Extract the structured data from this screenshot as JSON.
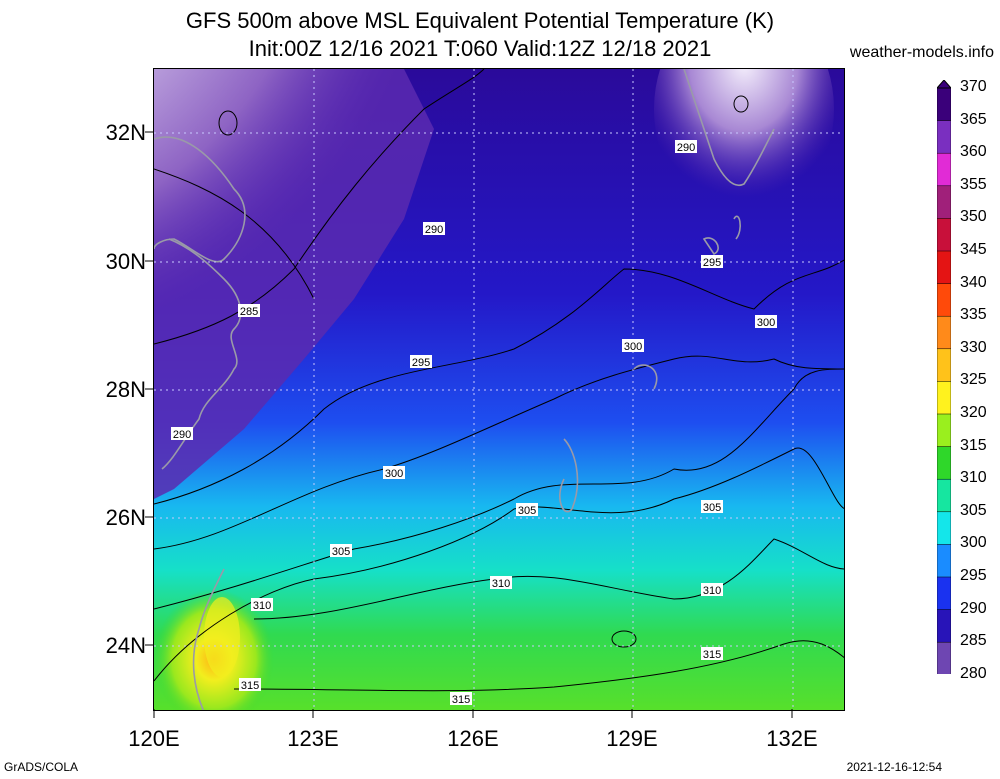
{
  "header": {
    "title_line1": "GFS 500m above MSL Equivalent Potential Temperature (K)",
    "title_line2": "Init:00Z 12/16 2021 T:060 Valid:12Z 12/18 2021",
    "site": "weather-models.info"
  },
  "axes": {
    "lat_labels": [
      "32N",
      "30N",
      "28N",
      "26N",
      "24N"
    ],
    "lon_labels": [
      "120E",
      "123E",
      "126E",
      "129E",
      "132E"
    ]
  },
  "contour_labels": [
    "290",
    "285",
    "290",
    "290",
    "295",
    "295",
    "300",
    "300",
    "300",
    "305",
    "305",
    "305",
    "310",
    "310",
    "310",
    "315",
    "315",
    "315"
  ],
  "colorbar": {
    "values": [
      "370",
      "365",
      "360",
      "355",
      "350",
      "345",
      "340",
      "335",
      "330",
      "325",
      "320",
      "315",
      "310",
      "305",
      "300",
      "295",
      "290",
      "285",
      "280"
    ],
    "colors": [
      "#3a007a",
      "#7a2fc0",
      "#e12bd6",
      "#a0207a",
      "#c8103a",
      "#e41414",
      "#ff4a0a",
      "#ff8a1a",
      "#ffc21a",
      "#fff21e",
      "#9aef1e",
      "#2fd72a",
      "#16e6a0",
      "#14e6ea",
      "#1a8cff",
      "#1a32f0",
      "#2814b8",
      "#6e46b2",
      "#ffffff"
    ]
  },
  "footer": {
    "left": "GrADS/COLA",
    "right": "2021-12-16-12:54"
  }
}
